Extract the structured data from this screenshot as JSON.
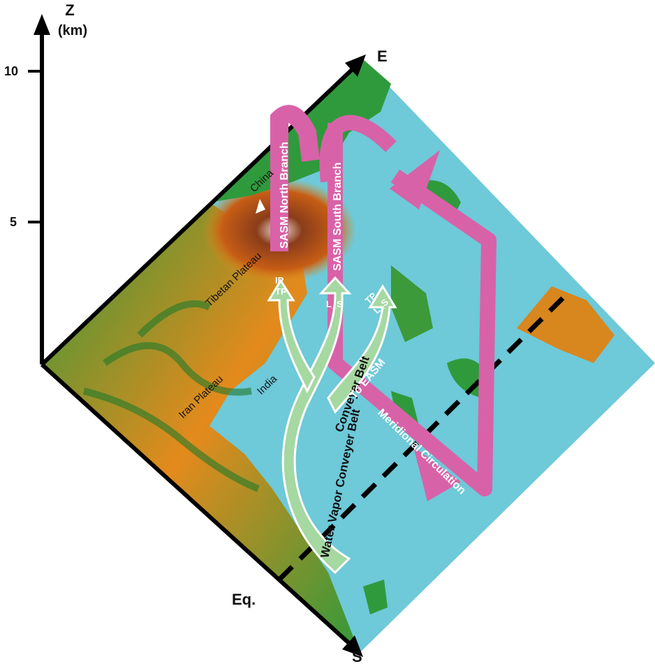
{
  "axes": {
    "z_label": "Z",
    "z_unit": "(km)",
    "z_ticks": [
      "10",
      "5"
    ],
    "east_label": "E",
    "south_label": "S",
    "equator_label": "Eq."
  },
  "regions": {
    "china": "China",
    "tibetan_plateau": "Tibetan Plateau",
    "iran_plateau": "Iran Plateau",
    "india": "India"
  },
  "circulation": {
    "north_branch": "SASM North Branch",
    "south_branch": "SASM South Branch",
    "meridional": "Meridional Circulation"
  },
  "conveyor": {
    "main": "Water Vapor Conveyer Belt",
    "secondary": "Conveyer Belt",
    "to_easm": "To EASM",
    "tag_ip_tp_1": "IP",
    "tag_ip_tp_2": "TP",
    "tag_ls": "L_S",
    "tag_tp_ls_1": "TP",
    "tag_tp_ls_2": "L_S"
  },
  "colors": {
    "sea": "#6ec9d8",
    "land_green": "#2f9a3c",
    "land_orange": "#e48a1c",
    "plateau_brown": "#7a3312",
    "circulation_pink": "#d862a8",
    "belt_green": "#a6d8a2"
  }
}
